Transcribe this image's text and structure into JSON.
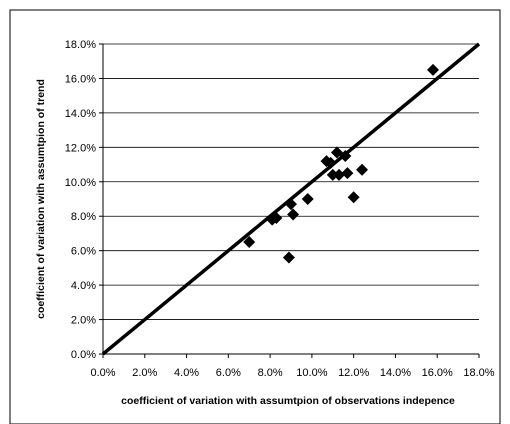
{
  "chart_data": {
    "type": "scatter",
    "xlabel": "coefficient of variation with assumtpion of observations indepence",
    "ylabel": "coefficient of variation with assumtpion of trend",
    "xlim": [
      0,
      18
    ],
    "ylim": [
      0,
      18
    ],
    "x_ticks": [
      "0.0%",
      "2.0%",
      "4.0%",
      "6.0%",
      "8.0%",
      "10.0%",
      "12.0%",
      "14.0%",
      "16.0%",
      "18.0%"
    ],
    "y_ticks": [
      "0.0%",
      "2.0%",
      "4.0%",
      "6.0%",
      "8.0%",
      "10.0%",
      "12.0%",
      "14.0%",
      "16.0%",
      "18.0%"
    ],
    "grid": "horizontal",
    "legend": "none",
    "reference_line": {
      "x": [
        0,
        18
      ],
      "y": [
        0,
        18
      ]
    },
    "points": [
      {
        "x": 7.0,
        "y": 6.5
      },
      {
        "x": 8.1,
        "y": 7.8
      },
      {
        "x": 8.3,
        "y": 7.9
      },
      {
        "x": 8.9,
        "y": 5.6
      },
      {
        "x": 9.0,
        "y": 8.7
      },
      {
        "x": 9.1,
        "y": 8.1
      },
      {
        "x": 9.8,
        "y": 9.0
      },
      {
        "x": 10.7,
        "y": 11.2
      },
      {
        "x": 10.9,
        "y": 11.1
      },
      {
        "x": 11.0,
        "y": 10.4
      },
      {
        "x": 11.2,
        "y": 11.7
      },
      {
        "x": 11.3,
        "y": 10.4
      },
      {
        "x": 11.6,
        "y": 11.5
      },
      {
        "x": 11.7,
        "y": 10.5
      },
      {
        "x": 12.0,
        "y": 9.1
      },
      {
        "x": 12.4,
        "y": 10.7
      },
      {
        "x": 15.8,
        "y": 16.5
      }
    ],
    "colors": {
      "marker": "#000000",
      "line": "#000000",
      "grid": "#000000"
    }
  }
}
